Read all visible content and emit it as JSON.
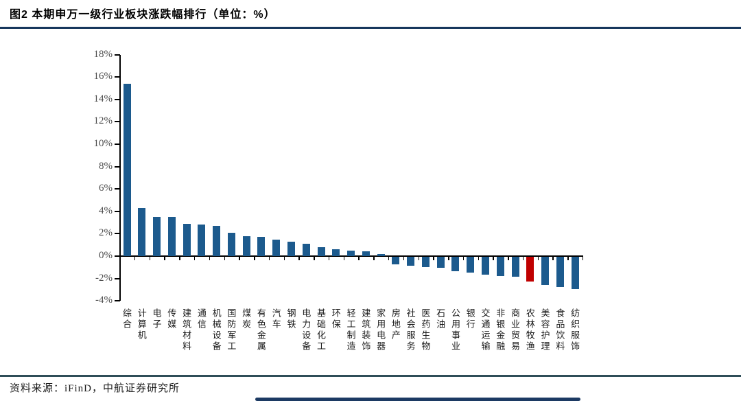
{
  "header": {
    "title": "图2  本期申万一级行业板块涨跌幅排行（单位：%）"
  },
  "footer": {
    "source": "资料来源：iFinD，中航证券研究所"
  },
  "chart_data": {
    "type": "bar",
    "title": "本期申万一级行业板块涨跌幅排行",
    "unit": "%",
    "categories": [
      "综合",
      "计算机",
      "电子",
      "传媒",
      "建筑材料",
      "通信",
      "机械设备",
      "国防军工",
      "煤炭",
      "有色金属",
      "汽车",
      "钢铁",
      "电力设备",
      "基础化工",
      "环保",
      "轻工制造",
      "建筑装饰",
      "家用电器",
      "房地产",
      "社会服务",
      "医药生物",
      "石油",
      "公用事业",
      "银行",
      "交通运输",
      "非银金融",
      "商业贸易",
      "农林牧渔",
      "美容护理",
      "食品饮料",
      "纺织服饰"
    ],
    "values": [
      15.4,
      4.3,
      3.5,
      3.5,
      2.9,
      2.8,
      2.7,
      2.1,
      1.8,
      1.7,
      1.5,
      1.3,
      1.1,
      0.8,
      0.6,
      0.5,
      0.4,
      0.2,
      -0.7,
      -0.8,
      -0.9,
      -1.0,
      -1.3,
      -1.4,
      -1.6,
      -1.7,
      -1.8,
      -2.2,
      -2.5,
      -2.7,
      -2.9
    ],
    "highlight_index": 27,
    "bar_color": "#1c5a8d",
    "highlight_color": "#c00000",
    "ylim": [
      -4,
      18
    ],
    "ytick_step": 2,
    "ytick_labels": [
      "18%",
      "16%",
      "14%",
      "12%",
      "10%",
      "8%",
      "6%",
      "4%",
      "2%",
      "0%",
      "-2%",
      "-4%"
    ],
    "grid": false,
    "legend": "none",
    "xlabel": "",
    "ylabel": ""
  }
}
